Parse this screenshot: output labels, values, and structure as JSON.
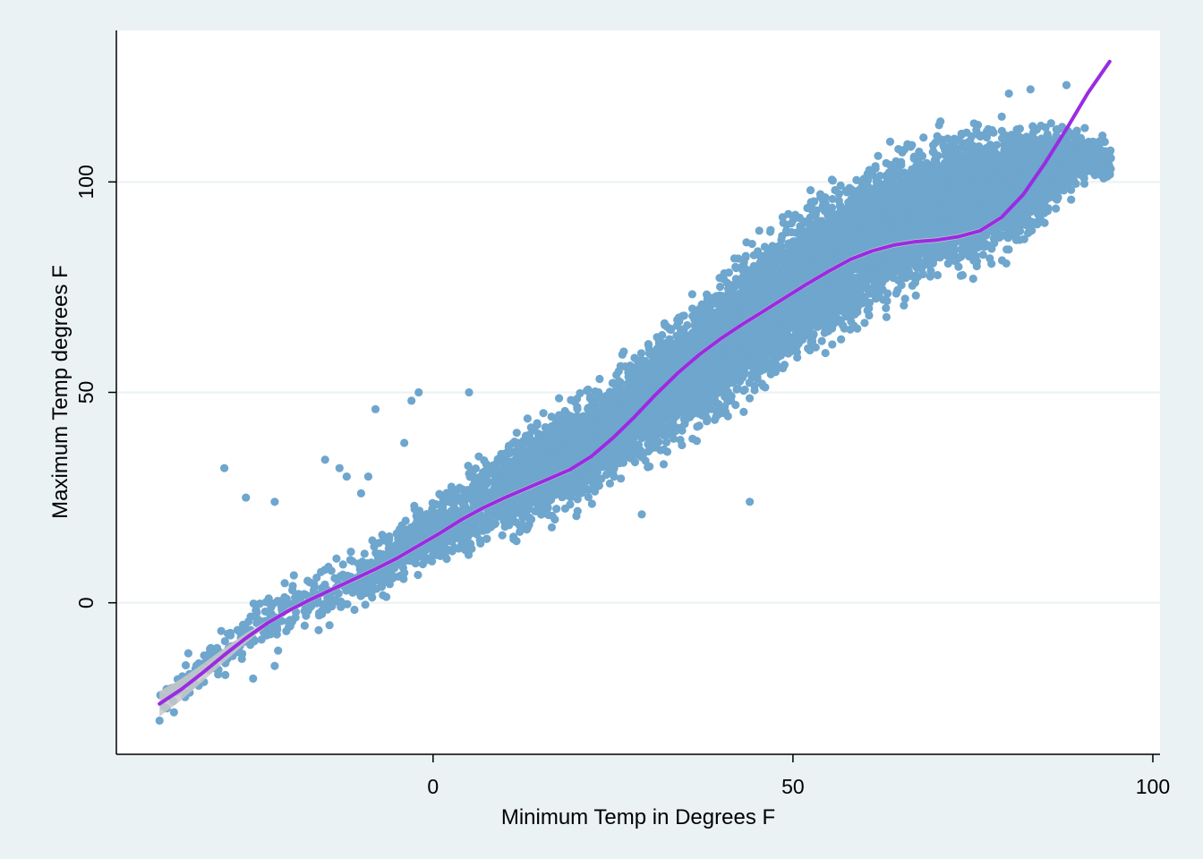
{
  "chart_data": {
    "type": "scatter",
    "title": "",
    "xlabel": "Minimum Temp in Degrees F",
    "ylabel": "Maximum Temp degrees F",
    "xlim": [
      -44,
      101
    ],
    "ylim": [
      -36,
      136
    ],
    "x_ticks": [
      {
        "value": 0,
        "label": "0"
      },
      {
        "value": 50,
        "label": "50"
      },
      {
        "value": 100,
        "label": "100"
      }
    ],
    "y_ticks": [
      {
        "value": 0,
        "label": "0"
      },
      {
        "value": 50,
        "label": "50"
      },
      {
        "value": 100,
        "label": "100"
      }
    ],
    "grid": "horizontal",
    "legend": "none",
    "colors": {
      "scatter": "#6ea6cd",
      "fit_line": "#9a2be2",
      "confidence_band": "#c8c8c8",
      "plot_background": "#ffffff",
      "outer_background": "#eaf2f3",
      "grid": "#eaf2f3"
    },
    "series": [
      {
        "type": "scatter",
        "density_envelope": {
          "x": [
            -38,
            -30,
            -20,
            -10,
            0,
            10,
            20,
            30,
            40,
            50,
            60,
            70,
            80,
            86,
            90,
            94
          ],
          "low": [
            -28,
            -20,
            -11,
            -4,
            6,
            12,
            19,
            30,
            40,
            52,
            63,
            73,
            79,
            90,
            98,
            100
          ],
          "high": [
            -20,
            -5,
            8,
            15,
            28,
            42,
            52,
            66,
            82,
            98,
            108,
            116,
            118,
            116,
            114,
            110
          ]
        },
        "outliers": [
          [
            -29,
            32
          ],
          [
            -26,
            25
          ],
          [
            -22,
            24
          ],
          [
            -15,
            34
          ],
          [
            -13,
            32
          ],
          [
            -12,
            30
          ],
          [
            -8,
            46
          ],
          [
            -3,
            48
          ],
          [
            -2,
            50
          ],
          [
            -4,
            38
          ],
          [
            44,
            24
          ],
          [
            29,
            21
          ],
          [
            5,
            50
          ],
          [
            -38,
            -28
          ],
          [
            -36,
            -26
          ],
          [
            -34,
            -12
          ],
          [
            -31,
            -11
          ],
          [
            -25,
            -18
          ],
          [
            -22,
            -15
          ],
          [
            93,
            111
          ],
          [
            94,
            102
          ],
          [
            88,
            123
          ],
          [
            83,
            122
          ],
          [
            80,
            121
          ],
          [
            -10,
            26
          ],
          [
            -9,
            30
          ]
        ]
      },
      {
        "type": "line",
        "x": [
          -38,
          -35,
          -32,
          -29,
          -26,
          -23,
          -20,
          -17,
          -14,
          -11,
          -8,
          -5,
          -2,
          1,
          4,
          7,
          10,
          13,
          16,
          19,
          22,
          25,
          28,
          31,
          34,
          37,
          40,
          43,
          46,
          49,
          52,
          55,
          58,
          61,
          64,
          67,
          70,
          73,
          76,
          79,
          82,
          85,
          88,
          91,
          94
        ],
        "y": [
          -24,
          -20.6,
          -16.6,
          -12.4,
          -8.4,
          -4.8,
          -1.8,
          0.8,
          3.2,
          5.6,
          8,
          10.6,
          13.6,
          16.6,
          19.8,
          22.6,
          25,
          27.2,
          29.4,
          31.6,
          34.8,
          39.2,
          44.2,
          49.6,
          54.6,
          59,
          62.8,
          66.2,
          69.4,
          72.6,
          75.8,
          78.8,
          81.6,
          83.6,
          85,
          85.8,
          86.2,
          87,
          88.4,
          91.6,
          97,
          104.4,
          112.6,
          121.2,
          128.6
        ]
      }
    ]
  }
}
